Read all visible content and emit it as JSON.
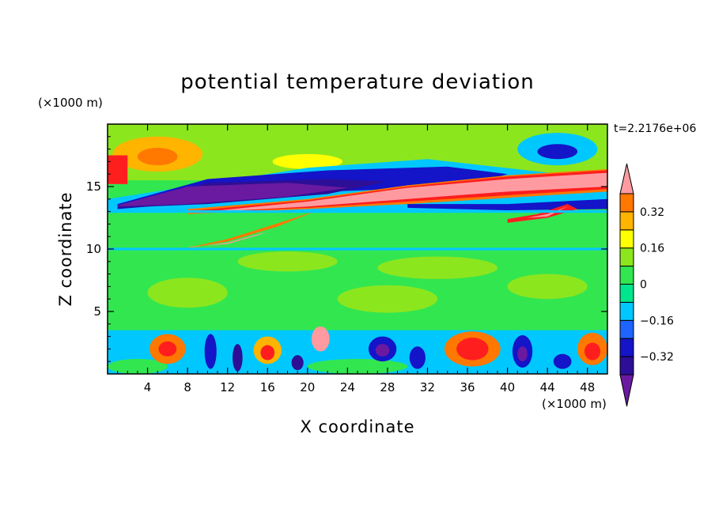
{
  "chart_data": {
    "type": "heatmap",
    "title": "potential temperature deviation",
    "xlabel": "X coordinate",
    "ylabel": "Z coordinate",
    "x_unit": "(×1000 m)",
    "y_unit": "(×1000 m)",
    "time_label": "t=2.2176e+06",
    "xlim": [
      0,
      50
    ],
    "ylim": [
      0,
      20
    ],
    "x_ticks": [
      4,
      8,
      12,
      16,
      20,
      24,
      28,
      32,
      36,
      40,
      44,
      48
    ],
    "y_ticks": [
      5,
      10,
      15
    ],
    "colorbar": {
      "levels": [
        -0.48,
        -0.4,
        -0.32,
        -0.24,
        -0.16,
        -0.08,
        0,
        0.08,
        0.16,
        0.24,
        0.32,
        0.4,
        0.48
      ],
      "tick_values": [
        0.32,
        0.16,
        0,
        -0.16,
        -0.32
      ],
      "tick_labels": [
        "0.32",
        "0.16",
        "0",
        "−0.16",
        "−0.32"
      ],
      "colors": [
        "#6a1aa0",
        "#2c0f96",
        "#1414c8",
        "#1e64ff",
        "#00c8ff",
        "#00e68c",
        "#32e650",
        "#8ce61e",
        "#ffff00",
        "#ffb400",
        "#ff7800",
        "#ff1e1e",
        "#ff9ba0"
      ]
    },
    "regions": [
      {
        "name": "background",
        "kind": "rect",
        "x0": 0,
        "x1": 50,
        "y0": 0,
        "y1": 20,
        "color": "#32e650"
      },
      {
        "name": "upper-layer",
        "kind": "rect",
        "x0": 0,
        "x1": 50,
        "y0": 15.5,
        "y1": 20,
        "color": "#8ce61e"
      },
      {
        "name": "left-warm-blob-outer",
        "kind": "ellipse",
        "cx": 5,
        "cy": 17.6,
        "rx": 4.5,
        "ry": 1.4,
        "color": "#ffb400"
      },
      {
        "name": "left-warm-blob-inner",
        "kind": "ellipse",
        "cx": 5,
        "cy": 17.4,
        "rx": 2,
        "ry": 0.7,
        "color": "#ff7800"
      },
      {
        "name": "left-red-edge",
        "kind": "rect",
        "x0": 0,
        "x1": 2,
        "y0": 15.2,
        "y1": 17.5,
        "color": "#ff1e1e"
      },
      {
        "name": "right-cold-blob-outer",
        "kind": "ellipse",
        "cx": 45,
        "cy": 18,
        "rx": 4,
        "ry": 1.3,
        "color": "#00c8ff"
      },
      {
        "name": "right-cold-blob-inner",
        "kind": "ellipse",
        "cx": 45,
        "cy": 17.8,
        "rx": 2,
        "ry": 0.6,
        "color": "#1414c8"
      },
      {
        "name": "mid-yellow-patch",
        "kind": "ellipse",
        "cx": 20,
        "cy": 17,
        "rx": 3.5,
        "ry": 0.6,
        "color": "#ffff00"
      },
      {
        "name": "cold-band-cyan",
        "kind": "poly",
        "pts": [
          [
            0,
            14
          ],
          [
            8,
            15
          ],
          [
            20,
            16.5
          ],
          [
            32,
            17.2
          ],
          [
            42,
            16.3
          ],
          [
            50,
            15.6
          ],
          [
            50,
            13.2
          ],
          [
            34,
            13
          ],
          [
            20,
            13
          ],
          [
            0,
            13
          ]
        ],
        "color": "#00c8ff"
      },
      {
        "name": "cold-band-blue",
        "kind": "poly",
        "pts": [
          [
            1,
            13.6
          ],
          [
            10,
            15.6
          ],
          [
            22,
            16.3
          ],
          [
            34,
            16.6
          ],
          [
            40,
            16
          ],
          [
            36,
            15
          ],
          [
            22,
            14.6
          ],
          [
            10,
            13.8
          ],
          [
            1,
            13.2
          ]
        ],
        "color": "#1414c8"
      },
      {
        "name": "cold-band-navy",
        "kind": "poly",
        "pts": [
          [
            1,
            13.4
          ],
          [
            10,
            15.3
          ],
          [
            22,
            15.6
          ],
          [
            28,
            15.4
          ],
          [
            22,
            14.4
          ],
          [
            10,
            13.6
          ],
          [
            1,
            13.3
          ]
        ],
        "color": "#2c0f96"
      },
      {
        "name": "cold-band-purple",
        "kind": "poly",
        "pts": [
          [
            1,
            13.5
          ],
          [
            8,
            15
          ],
          [
            18,
            15.3
          ],
          [
            24,
            14.9
          ],
          [
            18,
            14.2
          ],
          [
            8,
            13.6
          ],
          [
            1,
            13.4
          ]
        ],
        "color": "#6a1aa0"
      },
      {
        "name": "lower-right-cold-band",
        "kind": "poly",
        "pts": [
          [
            30,
            13.6
          ],
          [
            40,
            13.6
          ],
          [
            50,
            14
          ],
          [
            50,
            13.2
          ],
          [
            40,
            13.1
          ],
          [
            30,
            13.3
          ]
        ],
        "color": "#1414c8"
      },
      {
        "name": "warm-sheet-upper-orange",
        "kind": "poly",
        "pts": [
          [
            8,
            13.2
          ],
          [
            20,
            14
          ],
          [
            30,
            15.1
          ],
          [
            40,
            15.9
          ],
          [
            50,
            16.4
          ],
          [
            50,
            14.6
          ],
          [
            40,
            14.1
          ],
          [
            30,
            13.6
          ],
          [
            20,
            13.2
          ],
          [
            8,
            12.8
          ]
        ],
        "color": "#ff7800"
      },
      {
        "name": "warm-sheet-upper-red",
        "kind": "poly",
        "pts": [
          [
            9,
            13.1
          ],
          [
            20,
            13.9
          ],
          [
            30,
            15
          ],
          [
            40,
            15.8
          ],
          [
            50,
            16.3
          ],
          [
            50,
            14.8
          ],
          [
            40,
            14.3
          ],
          [
            30,
            13.8
          ],
          [
            20,
            13.3
          ],
          [
            9,
            12.9
          ]
        ],
        "color": "#ff1e1e"
      },
      {
        "name": "warm-sheet-upper-pink",
        "kind": "poly",
        "pts": [
          [
            10,
            13
          ],
          [
            20,
            13.8
          ],
          [
            30,
            14.9
          ],
          [
            40,
            15.6
          ],
          [
            50,
            16.1
          ],
          [
            50,
            15
          ],
          [
            40,
            14.6
          ],
          [
            30,
            14
          ],
          [
            20,
            13.4
          ],
          [
            10,
            12.95
          ]
        ],
        "color": "#ff9ba0"
      },
      {
        "name": "warm-sheet-lower-orange",
        "kind": "poly",
        "pts": [
          [
            7.5,
            10
          ],
          [
            12,
            10.6
          ],
          [
            17,
            11.8
          ],
          [
            21,
            13.1
          ],
          [
            18,
            12.3
          ],
          [
            12,
            10.8
          ],
          [
            8,
            10.1
          ]
        ],
        "color": "#ff7800"
      },
      {
        "name": "warm-sheet-lower-pink",
        "kind": "poly",
        "pts": [
          [
            8,
            10.1
          ],
          [
            12,
            10.5
          ],
          [
            16,
            11.4
          ],
          [
            19,
            12.3
          ],
          [
            15,
            11.1
          ],
          [
            12,
            10.4
          ],
          [
            8.5,
            10.2
          ]
        ],
        "color": "#ff9ba0"
      },
      {
        "name": "right-warm-streak",
        "kind": "poly",
        "pts": [
          [
            40,
            12.4
          ],
          [
            43,
            12.8
          ],
          [
            46,
            13.6
          ],
          [
            47,
            13.2
          ],
          [
            44,
            12.5
          ],
          [
            40,
            12.1
          ]
        ],
        "color": "#ff1e1e"
      },
      {
        "name": "right-warm-streak-core",
        "kind": "poly",
        "pts": [
          [
            42,
            12.5
          ],
          [
            44,
            12.8
          ],
          [
            46,
            13.4
          ],
          [
            44,
            12.6
          ]
        ],
        "color": "#ff9ba0"
      },
      {
        "name": "band-10km-line",
        "kind": "rect",
        "x0": 0,
        "x1": 50,
        "y0": 9.9,
        "y1": 10.1,
        "color": "#00c8ff"
      },
      {
        "name": "band-13km-line",
        "kind": "rect",
        "x0": 0,
        "x1": 50,
        "y0": 12.9,
        "y1": 13.1,
        "color": "#00c8ff"
      },
      {
        "name": "mid-green-patch-1",
        "kind": "ellipse",
        "cx": 18,
        "cy": 9,
        "rx": 5,
        "ry": 0.8,
        "color": "#8ce61e"
      },
      {
        "name": "mid-green-patch-2",
        "kind": "ellipse",
        "cx": 33,
        "cy": 8.5,
        "rx": 6,
        "ry": 0.9,
        "color": "#8ce61e"
      },
      {
        "name": "mid-green-patch-3",
        "kind": "ellipse",
        "cx": 8,
        "cy": 6.5,
        "rx": 4,
        "ry": 1.2,
        "color": "#8ce61e"
      },
      {
        "name": "mid-green-patch-4",
        "kind": "ellipse",
        "cx": 28,
        "cy": 6,
        "rx": 5,
        "ry": 1.1,
        "color": "#8ce61e"
      },
      {
        "name": "mid-green-patch-5",
        "kind": "ellipse",
        "cx": 44,
        "cy": 7,
        "rx": 4,
        "ry": 1,
        "color": "#8ce61e"
      },
      {
        "name": "boundary-layer",
        "kind": "rect",
        "x0": 0,
        "x1": 50,
        "y0": 0,
        "y1": 3.5,
        "color": "#00c8ff"
      },
      {
        "name": "bl-green-1",
        "kind": "ellipse",
        "cx": 3,
        "cy": 0.6,
        "rx": 3,
        "ry": 0.6,
        "color": "#32e650"
      },
      {
        "name": "bl-green-2",
        "kind": "ellipse",
        "cx": 25,
        "cy": 0.6,
        "rx": 5,
        "ry": 0.6,
        "color": "#32e650"
      },
      {
        "name": "bl-warm-1",
        "kind": "ellipse",
        "cx": 6,
        "cy": 2.0,
        "rx": 1.8,
        "ry": 1.2,
        "color": "#ff7800"
      },
      {
        "name": "bl-warm-1-core",
        "kind": "ellipse",
        "cx": 6,
        "cy": 2.0,
        "rx": 0.9,
        "ry": 0.6,
        "color": "#ff1e1e"
      },
      {
        "name": "bl-warm-2",
        "kind": "ellipse",
        "cx": 16,
        "cy": 1.9,
        "rx": 1.4,
        "ry": 1.1,
        "color": "#ffb400"
      },
      {
        "name": "bl-warm-2-core",
        "kind": "ellipse",
        "cx": 16,
        "cy": 1.7,
        "rx": 0.7,
        "ry": 0.6,
        "color": "#ff1e1e"
      },
      {
        "name": "bl-pink-plume",
        "kind": "ellipse",
        "cx": 21.3,
        "cy": 2.8,
        "rx": 0.9,
        "ry": 1.0,
        "color": "#ff9ba0"
      },
      {
        "name": "bl-warm-3",
        "kind": "ellipse",
        "cx": 36.5,
        "cy": 2.0,
        "rx": 2.8,
        "ry": 1.4,
        "color": "#ff7800"
      },
      {
        "name": "bl-warm-3-core",
        "kind": "ellipse",
        "cx": 36.5,
        "cy": 2.0,
        "rx": 1.6,
        "ry": 0.9,
        "color": "#ff1e1e"
      },
      {
        "name": "bl-warm-4",
        "kind": "ellipse",
        "cx": 48.5,
        "cy": 2.0,
        "rx": 1.5,
        "ry": 1.3,
        "color": "#ff7800"
      },
      {
        "name": "bl-warm-4-core",
        "kind": "ellipse",
        "cx": 48.5,
        "cy": 1.8,
        "rx": 0.8,
        "ry": 0.7,
        "color": "#ff1e1e"
      },
      {
        "name": "bl-cold-1",
        "kind": "ellipse",
        "cx": 10.3,
        "cy": 1.8,
        "rx": 0.6,
        "ry": 1.4,
        "color": "#1414c8"
      },
      {
        "name": "bl-cold-2",
        "kind": "ellipse",
        "cx": 13,
        "cy": 1.3,
        "rx": 0.5,
        "ry": 1.1,
        "color": "#2c0f96"
      },
      {
        "name": "bl-cold-3",
        "kind": "ellipse",
        "cx": 27.5,
        "cy": 2.0,
        "rx": 1.4,
        "ry": 1.0,
        "color": "#1414c8"
      },
      {
        "name": "bl-cold-3-core",
        "kind": "ellipse",
        "cx": 27.5,
        "cy": 1.9,
        "rx": 0.7,
        "ry": 0.5,
        "color": "#6a1aa0"
      },
      {
        "name": "bl-cold-4",
        "kind": "ellipse",
        "cx": 31,
        "cy": 1.3,
        "rx": 0.8,
        "ry": 0.9,
        "color": "#1414c8"
      },
      {
        "name": "bl-cold-5",
        "kind": "ellipse",
        "cx": 41.5,
        "cy": 1.8,
        "rx": 1.0,
        "ry": 1.3,
        "color": "#1414c8"
      },
      {
        "name": "bl-cold-5-core",
        "kind": "ellipse",
        "cx": 41.5,
        "cy": 1.6,
        "rx": 0.5,
        "ry": 0.6,
        "color": "#6a1aa0"
      },
      {
        "name": "bl-cold-6",
        "kind": "ellipse",
        "cx": 45.5,
        "cy": 1.0,
        "rx": 0.9,
        "ry": 0.6,
        "color": "#1414c8"
      },
      {
        "name": "bl-cold-7",
        "kind": "ellipse",
        "cx": 19,
        "cy": 0.9,
        "rx": 0.6,
        "ry": 0.6,
        "color": "#2c0f96"
      }
    ],
    "grid": false
  }
}
